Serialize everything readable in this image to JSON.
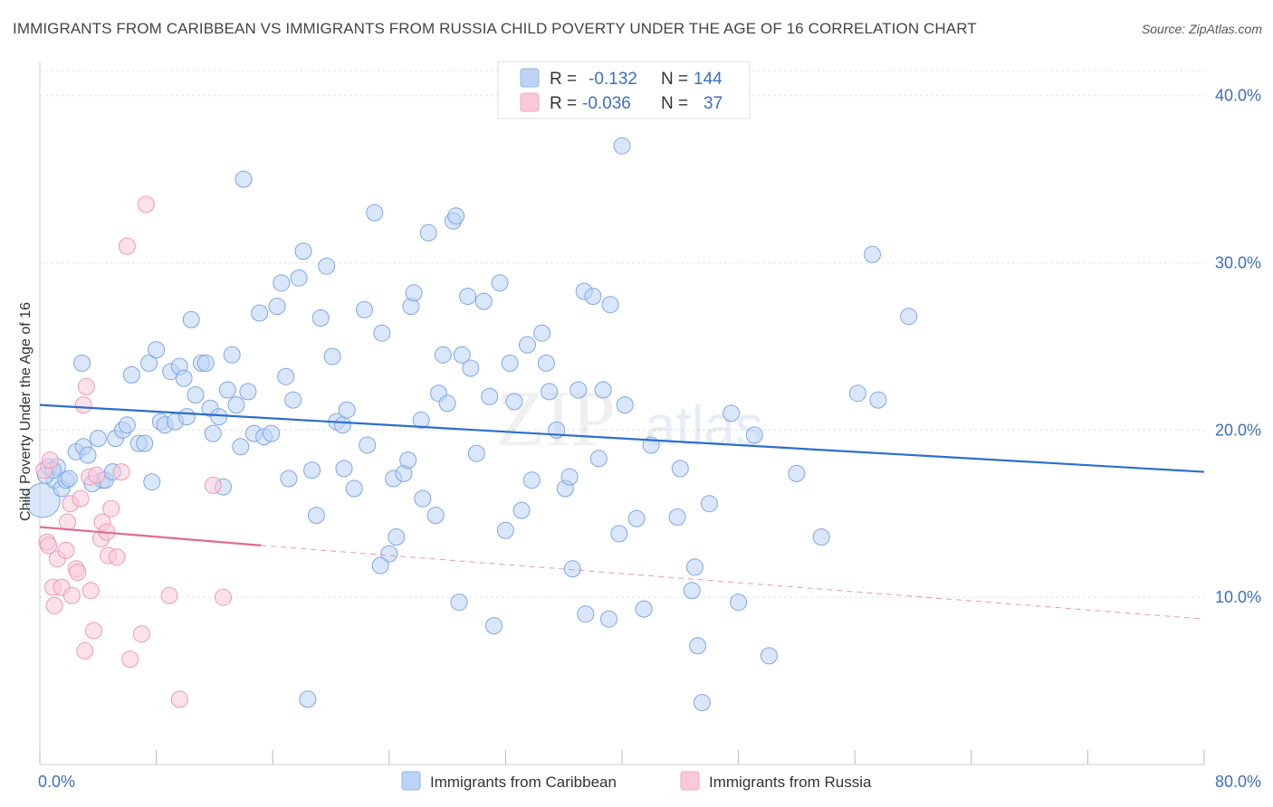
{
  "title": "IMMIGRANTS FROM CARIBBEAN VS IMMIGRANTS FROM RUSSIA CHILD POVERTY UNDER THE AGE OF 16 CORRELATION CHART",
  "source": "Source: ZipAtlas.com",
  "watermark": {
    "zip": "ZIP",
    "atlas": "atlas"
  },
  "chart_data": {
    "type": "scatter",
    "title": "IMMIGRANTS FROM CARIBBEAN VS IMMIGRANTS FROM RUSSIA CHILD POVERTY UNDER THE AGE OF 16 CORRELATION CHART",
    "xlabel": "",
    "ylabel": "Child Poverty Under the Age of 16",
    "xlim": [
      0,
      80
    ],
    "ylim": [
      0,
      41.5
    ],
    "x_tick_labels": [
      "0.0%",
      "80.0%"
    ],
    "y_ticks": [
      10,
      20,
      30,
      40
    ],
    "y_tick_labels": [
      "10.0%",
      "20.0%",
      "30.0%",
      "40.0%"
    ],
    "grid": true,
    "legend_position": "top-center",
    "colors": {
      "caribbean": "#8fb4ec",
      "russia": "#f2a7c0",
      "caribbean_line": "#2a6fcb",
      "russia_line": "#e06a95",
      "tick": "#3b6fc4"
    },
    "stats": [
      {
        "r_label": "R =",
        "r": "-0.132",
        "n_label": "N =",
        "n": "144"
      },
      {
        "r_label": "R =",
        "r": "-0.036",
        "n_label": "N =",
        "n": "37"
      }
    ],
    "series": [
      {
        "name": "Immigrants from Caribbean",
        "trend": {
          "x": [
            0,
            80
          ],
          "y": [
            21.5,
            17.5
          ]
        },
        "points": [
          [
            0.2,
            15.8
          ],
          [
            0.6,
            17.8
          ],
          [
            1.0,
            17.0
          ],
          [
            1.2,
            17.8
          ],
          [
            1.5,
            16.5
          ],
          [
            1.8,
            17.0
          ],
          [
            2.5,
            18.7
          ],
          [
            3.0,
            19.0
          ],
          [
            2.9,
            24.0
          ],
          [
            3.3,
            18.5
          ],
          [
            4.0,
            19.5
          ],
          [
            4.3,
            17.0
          ],
          [
            4.5,
            17.0
          ],
          [
            5.0,
            17.5
          ],
          [
            5.2,
            19.5
          ],
          [
            5.7,
            20.0
          ],
          [
            6.0,
            20.3
          ],
          [
            6.3,
            23.3
          ],
          [
            6.8,
            19.2
          ],
          [
            7.2,
            19.2
          ],
          [
            7.5,
            24.0
          ],
          [
            7.7,
            16.9
          ],
          [
            8.0,
            24.8
          ],
          [
            8.3,
            20.5
          ],
          [
            8.6,
            20.3
          ],
          [
            9.0,
            23.5
          ],
          [
            9.3,
            20.5
          ],
          [
            9.6,
            23.8
          ],
          [
            9.9,
            23.1
          ],
          [
            10.1,
            20.8
          ],
          [
            10.4,
            26.6
          ],
          [
            10.7,
            22.1
          ],
          [
            11.1,
            24.0
          ],
          [
            11.4,
            24.0
          ],
          [
            11.7,
            21.3
          ],
          [
            11.9,
            19.8
          ],
          [
            12.3,
            20.8
          ],
          [
            12.6,
            16.6
          ],
          [
            12.9,
            22.4
          ],
          [
            13.2,
            24.5
          ],
          [
            13.5,
            21.5
          ],
          [
            13.8,
            19.0
          ],
          [
            14.0,
            35.0
          ],
          [
            14.3,
            22.3
          ],
          [
            14.7,
            19.8
          ],
          [
            15.1,
            27.0
          ],
          [
            15.4,
            19.6
          ],
          [
            15.9,
            19.8
          ],
          [
            16.3,
            27.4
          ],
          [
            16.6,
            28.8
          ],
          [
            16.9,
            23.2
          ],
          [
            17.1,
            17.1
          ],
          [
            17.4,
            21.8
          ],
          [
            17.8,
            29.1
          ],
          [
            18.1,
            30.7
          ],
          [
            18.7,
            17.6
          ],
          [
            19.0,
            14.9
          ],
          [
            19.3,
            26.7
          ],
          [
            19.7,
            29.8
          ],
          [
            20.1,
            24.4
          ],
          [
            20.4,
            20.5
          ],
          [
            20.8,
            20.3
          ],
          [
            20.9,
            17.7
          ],
          [
            21.1,
            21.2
          ],
          [
            21.6,
            16.5
          ],
          [
            22.3,
            27.2
          ],
          [
            22.5,
            19.1
          ],
          [
            23.0,
            33.0
          ],
          [
            23.5,
            25.8
          ],
          [
            24.0,
            12.6
          ],
          [
            24.3,
            17.1
          ],
          [
            24.5,
            13.6
          ],
          [
            23.4,
            11.9
          ],
          [
            25.0,
            17.4
          ],
          [
            25.3,
            18.2
          ],
          [
            25.5,
            27.4
          ],
          [
            25.7,
            28.2
          ],
          [
            26.2,
            20.6
          ],
          [
            26.3,
            15.9
          ],
          [
            26.7,
            31.8
          ],
          [
            27.2,
            14.9
          ],
          [
            27.4,
            22.2
          ],
          [
            27.7,
            24.5
          ],
          [
            28.0,
            21.6
          ],
          [
            28.4,
            32.5
          ],
          [
            28.6,
            32.8
          ],
          [
            29.0,
            24.5
          ],
          [
            29.4,
            28.0
          ],
          [
            29.6,
            23.7
          ],
          [
            30.0,
            18.6
          ],
          [
            30.5,
            27.7
          ],
          [
            30.9,
            22.0
          ],
          [
            31.2,
            8.3
          ],
          [
            31.6,
            28.8
          ],
          [
            32.0,
            14.0
          ],
          [
            32.3,
            24.0
          ],
          [
            32.6,
            21.7
          ],
          [
            33.1,
            15.2
          ],
          [
            33.5,
            25.1
          ],
          [
            33.8,
            17.0
          ],
          [
            34.5,
            25.8
          ],
          [
            34.8,
            24.0
          ],
          [
            35.0,
            22.3
          ],
          [
            35.5,
            20.0
          ],
          [
            36.1,
            16.5
          ],
          [
            36.4,
            17.2
          ],
          [
            36.6,
            11.7
          ],
          [
            37.0,
            22.4
          ],
          [
            37.4,
            28.3
          ],
          [
            38.0,
            28.0
          ],
          [
            38.4,
            18.3
          ],
          [
            38.7,
            22.4
          ],
          [
            39.2,
            27.5
          ],
          [
            39.8,
            13.8
          ],
          [
            40.2,
            21.5
          ],
          [
            41.0,
            14.7
          ],
          [
            41.5,
            9.3
          ],
          [
            37.5,
            9.0
          ],
          [
            39.1,
            8.7
          ],
          [
            42.0,
            19.1
          ],
          [
            43.8,
            14.8
          ],
          [
            44.0,
            17.7
          ],
          [
            45.0,
            11.8
          ],
          [
            44.8,
            10.4
          ],
          [
            45.2,
            7.1
          ],
          [
            45.5,
            3.7
          ],
          [
            46.0,
            15.6
          ],
          [
            47.5,
            21.0
          ],
          [
            48.0,
            9.7
          ],
          [
            49.1,
            19.7
          ],
          [
            50.1,
            6.5
          ],
          [
            52.0,
            17.4
          ],
          [
            53.7,
            13.6
          ],
          [
            56.2,
            22.2
          ],
          [
            57.2,
            30.5
          ],
          [
            57.6,
            21.8
          ],
          [
            59.7,
            26.8
          ],
          [
            40.0,
            37.0
          ],
          [
            28.8,
            9.7
          ],
          [
            18.4,
            3.9
          ],
          [
            0.4,
            17.3
          ],
          [
            0.9,
            17.6
          ],
          [
            3.6,
            16.8
          ],
          [
            2.0,
            17.1
          ]
        ]
      },
      {
        "name": "Immigrants from Russia",
        "trend": {
          "x": [
            0,
            15.2
          ],
          "y": [
            14.2,
            13.1
          ]
        },
        "trend_dashed": {
          "x": [
            15.2,
            80
          ],
          "y": [
            13.1,
            8.7
          ]
        },
        "points": [
          [
            0.3,
            17.6
          ],
          [
            0.5,
            13.3
          ],
          [
            0.6,
            13.1
          ],
          [
            0.7,
            18.2
          ],
          [
            0.9,
            10.6
          ],
          [
            1.0,
            9.5
          ],
          [
            1.2,
            12.3
          ],
          [
            1.5,
            10.6
          ],
          [
            1.8,
            12.8
          ],
          [
            1.9,
            14.5
          ],
          [
            2.1,
            15.6
          ],
          [
            2.2,
            10.1
          ],
          [
            2.5,
            11.7
          ],
          [
            2.6,
            11.5
          ],
          [
            2.8,
            15.9
          ],
          [
            3.0,
            21.5
          ],
          [
            3.1,
            6.8
          ],
          [
            3.2,
            22.6
          ],
          [
            3.4,
            17.2
          ],
          [
            3.5,
            10.4
          ],
          [
            3.7,
            8.0
          ],
          [
            3.9,
            17.3
          ],
          [
            4.2,
            13.5
          ],
          [
            4.3,
            14.5
          ],
          [
            4.6,
            13.9
          ],
          [
            4.7,
            12.5
          ],
          [
            4.9,
            15.3
          ],
          [
            5.3,
            12.4
          ],
          [
            5.6,
            17.5
          ],
          [
            6.0,
            31.0
          ],
          [
            6.2,
            6.3
          ],
          [
            7.0,
            7.8
          ],
          [
            7.3,
            33.5
          ],
          [
            8.9,
            10.1
          ],
          [
            9.6,
            3.9
          ],
          [
            11.9,
            16.7
          ],
          [
            12.6,
            10.0
          ]
        ]
      }
    ]
  }
}
